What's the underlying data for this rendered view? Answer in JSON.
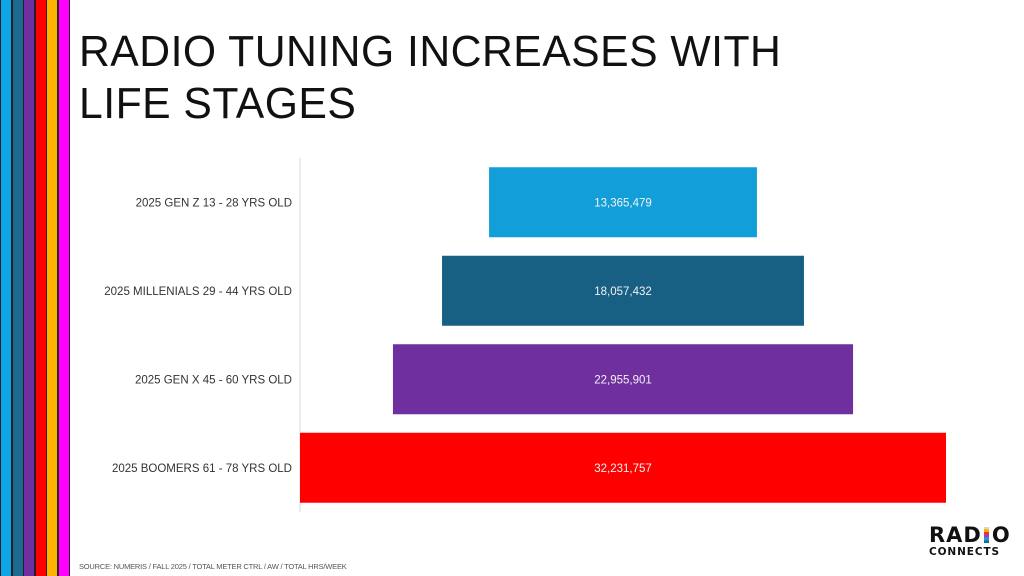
{
  "title": {
    "line1": "RADIO TUNING INCREASES WITH",
    "line2": "LIFE STAGES"
  },
  "stripes": {
    "colors": [
      "#0aa6e6",
      "#1b6b91",
      "#6f2fa0",
      "#ff0000",
      "#ffb300",
      "#ff00ff"
    ]
  },
  "chart_data": {
    "type": "bar",
    "orientation": "horizontal",
    "style": "funnel-centered",
    "title": "RADIO TUNING INCREASES WITH LIFE STAGES",
    "xlabel": "",
    "ylabel": "",
    "grid": false,
    "legend": "none",
    "categories": [
      "2025 GEN Z 13 - 28 YRS OLD",
      "2025 MILLENIALS 29 - 44 YRS OLD",
      "2025 GEN X 45 - 60 YRS OLD",
      "2025 BOOMERS 61 - 78 YRS OLD"
    ],
    "values": [
      13365479,
      18057432,
      22955901,
      32231757
    ],
    "value_labels": [
      "13,365,479",
      "18,057,432",
      "22,955,901",
      "32,231,757"
    ],
    "colors": [
      "#129ed8",
      "#175f83",
      "#6f2f9f",
      "#ff0000"
    ]
  },
  "source": "SOURCE: NUMERIS / FALL 2025 / TOTAL METER CTRL / AW / TOTAL HRS/WEEK",
  "logo": {
    "line1_pre": "RAD",
    "line1_post": "O",
    "line2": "CONNECTS",
    "full_text": "RADIO CONNECTS"
  }
}
